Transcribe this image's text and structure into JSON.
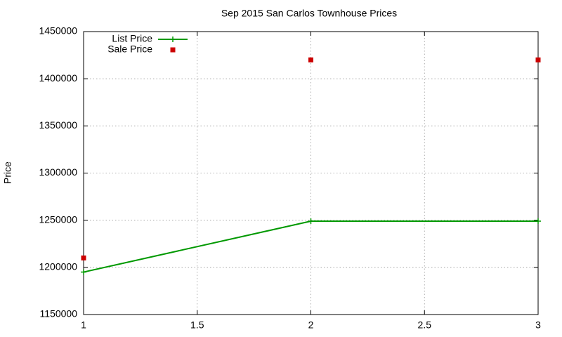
{
  "chart_data": {
    "type": "line",
    "title": "Sep 2015 San Carlos Townhouse Prices",
    "y_label": "Price",
    "x": [
      1,
      2,
      3
    ],
    "series": [
      {
        "name": "List Price",
        "color": "#009900",
        "mode": "lines+points",
        "values": [
          1195000,
          1249000,
          1249000
        ]
      },
      {
        "name": "Sale Price",
        "color": "#cc0000",
        "mode": "points",
        "values": [
          1210000,
          1420000,
          1420000
        ]
      }
    ],
    "xlim": [
      1,
      3
    ],
    "xticks": [
      1,
      1.5,
      2,
      2.5,
      3
    ],
    "ylim": [
      1150000,
      1450000
    ],
    "yticks": [
      1150000,
      1200000,
      1250000,
      1300000,
      1350000,
      1400000,
      1450000
    ],
    "grid": true,
    "legend": "top-left"
  }
}
